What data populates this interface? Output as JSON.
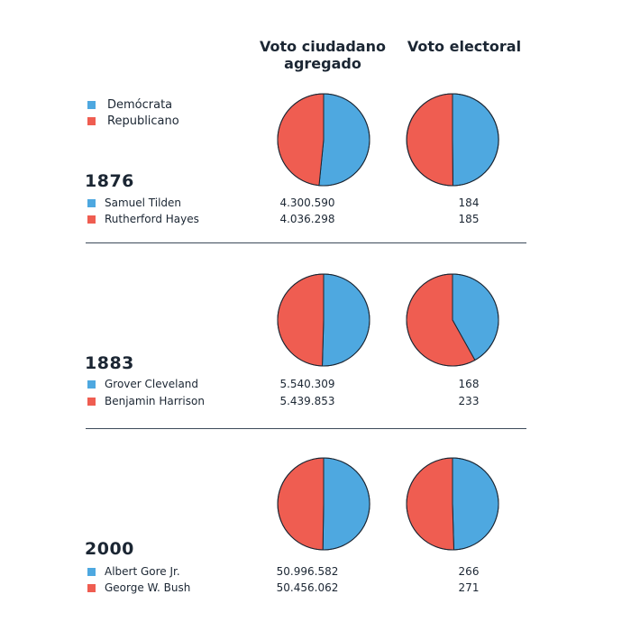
{
  "headers": {
    "popular": "Voto ciudadano agregado",
    "electoral": "Voto electoral"
  },
  "legend": {
    "dem": "Demócrata",
    "rep": "Republicano"
  },
  "colors": {
    "dem": "#4ea8e0",
    "rep": "#ef5d51",
    "outline": "#1b2633"
  },
  "elections": [
    {
      "year": "1876",
      "dem_name": "Samuel Tilden",
      "rep_name": "Rutherford Hayes",
      "dem_popular": "4.300.590",
      "rep_popular": "4.036.298",
      "dem_electoral": "184",
      "rep_electoral": "185"
    },
    {
      "year": "1883",
      "dem_name": "Grover Cleveland",
      "rep_name": "Benjamin Harrison",
      "dem_popular": "5.540.309",
      "rep_popular": "5.439.853",
      "dem_electoral": "168",
      "rep_electoral": "233"
    },
    {
      "year": "2000",
      "dem_name": "Albert Gore Jr.",
      "rep_name": "George W. Bush",
      "dem_popular": "50.996.582",
      "rep_popular": "50.456.062",
      "dem_electoral": "266",
      "rep_electoral": "271"
    }
  ],
  "chart_data": {
    "type": "pie",
    "title": "Voto ciudadano agregado vs. Voto electoral",
    "series": [
      "Demócrata",
      "Republicano"
    ],
    "charts": [
      {
        "year": 1876,
        "kind": "Voto ciudadano agregado",
        "values": [
          4300590,
          4036298
        ]
      },
      {
        "year": 1876,
        "kind": "Voto electoral",
        "values": [
          184,
          185
        ]
      },
      {
        "year": 1883,
        "kind": "Voto ciudadano agregado",
        "values": [
          5540309,
          5439853
        ]
      },
      {
        "year": 1883,
        "kind": "Voto electoral",
        "values": [
          168,
          233
        ]
      },
      {
        "year": 2000,
        "kind": "Voto ciudadano agregado",
        "values": [
          50996582,
          50456062
        ]
      },
      {
        "year": 2000,
        "kind": "Voto electoral",
        "values": [
          266,
          271
        ]
      }
    ]
  }
}
